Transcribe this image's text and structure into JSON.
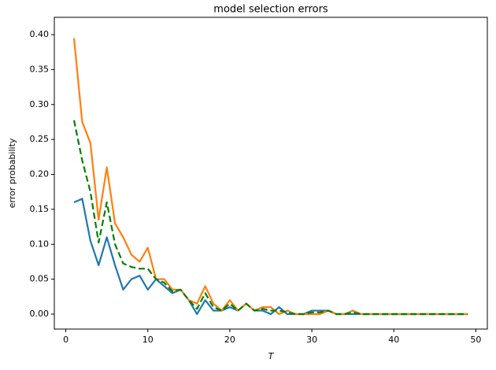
{
  "chart_data": {
    "type": "line",
    "title": "model selection errors",
    "xlabel": "T",
    "ylabel": "error probability",
    "x": [
      1,
      2,
      3,
      4,
      5,
      6,
      7,
      8,
      9,
      10,
      11,
      12,
      13,
      14,
      15,
      16,
      17,
      18,
      19,
      20,
      21,
      22,
      23,
      24,
      25,
      26,
      27,
      28,
      29,
      30,
      31,
      32,
      33,
      34,
      35,
      36,
      37,
      38,
      39,
      40,
      41,
      42,
      43,
      44,
      45,
      46,
      47,
      48,
      49
    ],
    "series": [
      {
        "color": "#1f77b4",
        "dashed": false,
        "values": [
          0.16,
          0.165,
          0.105,
          0.07,
          0.11,
          0.07,
          0.035,
          0.05,
          0.055,
          0.035,
          0.05,
          0.04,
          0.03,
          0.035,
          0.02,
          0.0,
          0.02,
          0.005,
          0.005,
          0.01,
          0.005,
          0.015,
          0.005,
          0.005,
          0.0,
          0.01,
          0.0,
          0,
          0,
          0.005,
          0.005,
          0.005,
          0,
          0,
          0,
          0,
          0,
          0,
          0,
          0,
          0,
          0,
          0,
          0,
          0,
          0,
          0,
          0,
          0
        ]
      },
      {
        "color": "#ff7f0e",
        "dashed": false,
        "values": [
          0.395,
          0.275,
          0.245,
          0.135,
          0.21,
          0.13,
          0.11,
          0.085,
          0.075,
          0.095,
          0.05,
          0.05,
          0.035,
          0.035,
          0.02,
          0.015,
          0.04,
          0.015,
          0.005,
          0.02,
          0.005,
          0.015,
          0.005,
          0.01,
          0.01,
          0.0,
          0.005,
          0,
          0,
          0,
          0,
          0.005,
          0,
          0,
          0.005,
          0,
          0,
          0,
          0,
          0,
          0,
          0,
          0,
          0,
          0,
          0,
          0,
          0,
          0
        ]
      },
      {
        "color": "#008000",
        "dashed": true,
        "values": [
          0.2775,
          0.22,
          0.175,
          0.1025,
          0.16,
          0.1,
          0.0725,
          0.0675,
          0.065,
          0.065,
          0.05,
          0.045,
          0.0325,
          0.035,
          0.02,
          0.0075,
          0.03,
          0.01,
          0.005,
          0.015,
          0.005,
          0.015,
          0.005,
          0.0075,
          0.005,
          0.005,
          0.0025,
          0,
          0,
          0.0025,
          0.0025,
          0.005,
          0,
          0,
          0.0025,
          0,
          0,
          0,
          0,
          0,
          0,
          0,
          0,
          0,
          0,
          0,
          0,
          0,
          0
        ]
      }
    ],
    "xlim": [
      -1.4,
      51.4
    ],
    "xticks": [
      0,
      10,
      20,
      30,
      40,
      50
    ],
    "ylim": [
      -0.0214,
      0.4248
    ],
    "yticks": [
      {
        "value": 0,
        "label": "0.00"
      },
      {
        "value": 0.05,
        "label": "0.05"
      },
      {
        "value": 0.1,
        "label": "0.10"
      },
      {
        "value": 0.15,
        "label": "0.15"
      },
      {
        "value": 0.2,
        "label": "0.20"
      },
      {
        "value": 0.25,
        "label": "0.25"
      },
      {
        "value": 0.3,
        "label": "0.30"
      },
      {
        "value": 0.35,
        "label": "0.35"
      },
      {
        "value": 0.4,
        "label": "0.40"
      }
    ],
    "grid": false
  }
}
